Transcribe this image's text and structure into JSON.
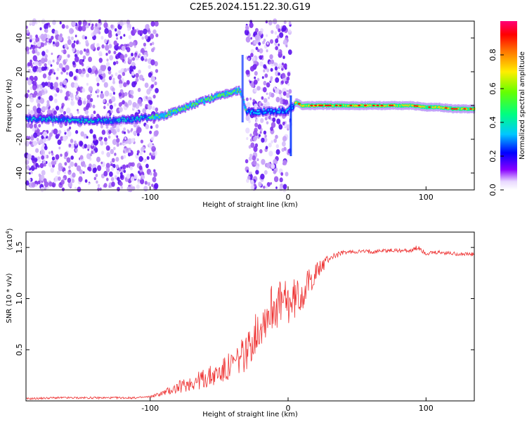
{
  "figure": {
    "title": "C2E5.2024.151.22.30.G19"
  },
  "chart_data": [
    {
      "type": "heatmap",
      "xlabel": "Height of straight line (km)",
      "ylabel": "Frequency (Hz)",
      "xlim": [
        -190,
        135
      ],
      "ylim": [
        -50,
        50
      ],
      "x_ticks": [
        -100,
        0,
        100
      ],
      "y_ticks": [
        -40,
        -20,
        0,
        20,
        40
      ],
      "grid": false,
      "colorbar": {
        "label": "Normalized spectral amplitude",
        "range": [
          0,
          1
        ],
        "ticks": [
          0.0,
          0.2,
          0.4,
          0.6,
          0.8
        ],
        "tick_labels": [
          "0.0",
          "0.2",
          "0.4",
          "0.6",
          "0.8"
        ],
        "colormap": "rainbow"
      },
      "trace_x": [
        -190,
        -170,
        -150,
        -130,
        -110,
        -100,
        -90,
        -80,
        -70,
        -60,
        -50,
        -40,
        -35,
        -33,
        -30,
        0,
        2,
        4,
        6,
        10,
        20,
        40,
        60,
        80,
        90,
        100,
        110,
        120,
        135
      ],
      "trace_y": [
        -8,
        -8,
        -9,
        -9,
        -8,
        -7,
        -6,
        -3,
        0,
        3,
        6,
        8,
        9,
        5,
        -4,
        -3,
        -2,
        0,
        2,
        0,
        0,
        0,
        0,
        0,
        0,
        -1,
        -1,
        -2,
        -2
      ],
      "noise_bands_x": [
        [
          -190,
          -95
        ],
        [
          -30,
          2
        ]
      ]
    },
    {
      "type": "line",
      "xlabel": "Height of straight line (km)",
      "ylabel": "SNR (10 * v/v)",
      "y_multiplier": "(x10",
      "y_multiplier_exp": "4",
      "xlim": [
        -190,
        135
      ],
      "ylim": [
        0,
        1.65
      ],
      "x_ticks": [
        -100,
        0,
        100
      ],
      "y_ticks": [
        0.5,
        1.0,
        1.5
      ],
      "y_tick_labels": [
        "0.5",
        "1.0",
        "1.5"
      ],
      "grid": false,
      "series": [
        {
          "color": "#ee3333",
          "x": [
            -190,
            -170,
            -150,
            -130,
            -110,
            -100,
            -90,
            -80,
            -70,
            -60,
            -50,
            -40,
            -30,
            -20,
            -10,
            0,
            10,
            20,
            30,
            40,
            50,
            60,
            70,
            80,
            90,
            95,
            100,
            110,
            120,
            135
          ],
          "y": [
            0.02,
            0.03,
            0.03,
            0.03,
            0.03,
            0.04,
            0.08,
            0.13,
            0.18,
            0.22,
            0.27,
            0.35,
            0.48,
            0.75,
            0.95,
            0.95,
            1.05,
            1.25,
            1.4,
            1.45,
            1.46,
            1.46,
            1.47,
            1.47,
            1.47,
            1.5,
            1.44,
            1.45,
            1.44,
            1.43
          ],
          "noise": [
            0.01,
            0.01,
            0.01,
            0.01,
            0.01,
            0.01,
            0.03,
            0.06,
            0.08,
            0.1,
            0.12,
            0.15,
            0.18,
            0.22,
            0.25,
            0.22,
            0.18,
            0.1,
            0.04,
            0.02,
            0.02,
            0.02,
            0.02,
            0.02,
            0.02,
            0.04,
            0.02,
            0.02,
            0.02,
            0.02
          ]
        }
      ]
    }
  ]
}
